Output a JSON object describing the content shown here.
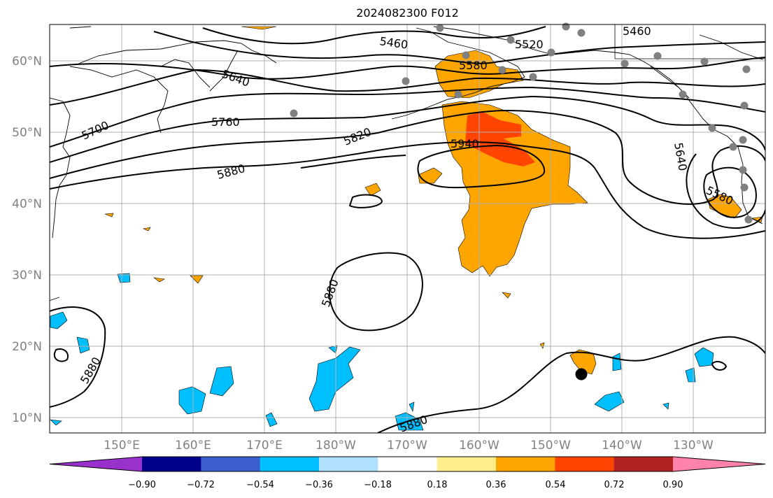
{
  "title": "2024082300 F012",
  "map": {
    "lat_ticks": [
      "60°N",
      "50°N",
      "40°N",
      "30°N",
      "20°N",
      "10°N"
    ],
    "lon_ticks": [
      "150°E",
      "160°E",
      "170°E",
      "180°W",
      "170°W",
      "160°W",
      "150°W",
      "140°W",
      "130°W"
    ],
    "contour_labels": [
      "5460",
      "5460",
      "5520",
      "5580",
      "5640",
      "5700",
      "5760",
      "5820",
      "5940",
      "5880",
      "5880",
      "5880",
      "5640",
      "5580",
      "5880"
    ],
    "colors": {
      "land": "#000000",
      "contour": "#000000",
      "grid": "#b0b0b0",
      "station": "#808080",
      "marker": "#000000"
    }
  },
  "colorbar": {
    "labels": [
      "−0.90",
      "−0.72",
      "−0.54",
      "−0.36",
      "−0.18",
      "0.18",
      "0.36",
      "0.54",
      "0.72",
      "0.90"
    ],
    "colors": [
      "#9932cc",
      "#00008b",
      "#3a5fcd",
      "#00bfff",
      "#b0e2ff",
      "#ffffff",
      "#ffec8b",
      "#ffa500",
      "#ff4500",
      "#b22222",
      "#ff82ab"
    ]
  }
}
